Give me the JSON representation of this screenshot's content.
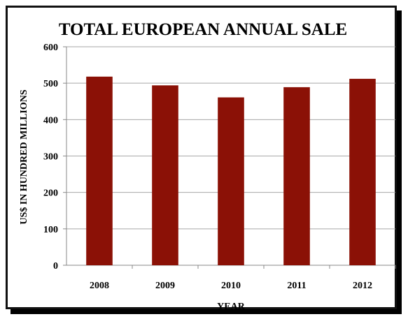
{
  "chart_data": {
    "type": "bar",
    "title": "TOTAL EUROPEAN ANNUAL SALE",
    "xlabel": "YEAR",
    "ylabel": "US$ IN HUNDRED MILLIONS",
    "categories": [
      "2008",
      "2009",
      "2010",
      "2011",
      "2012"
    ],
    "values": [
      518,
      494,
      461,
      489,
      512
    ],
    "ylim": [
      0,
      600
    ],
    "yticks": [
      0,
      100,
      200,
      300,
      400,
      500,
      600
    ],
    "grid": true,
    "legend": "none",
    "bar_color": "#8B1106",
    "grid_color": "#a6a6a6"
  }
}
